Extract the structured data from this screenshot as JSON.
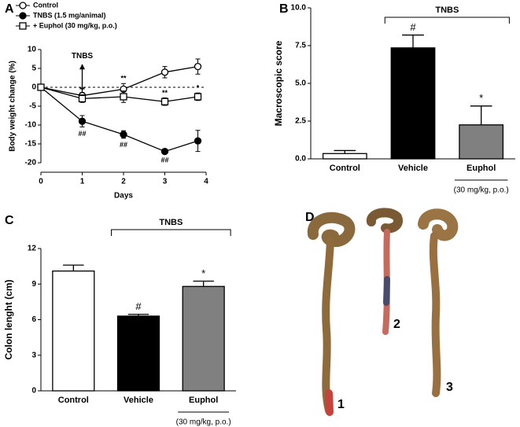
{
  "chart_data": [
    {
      "type": "line",
      "panel": "A",
      "xlabel": "Days",
      "ylabel": "Body weight change (%)",
      "x": [
        0,
        1,
        2,
        3,
        3.8
      ],
      "xlim": [
        0,
        4
      ],
      "xticks": [
        0,
        1,
        2,
        3,
        4
      ],
      "ylim": [
        -20,
        10
      ],
      "yticks": [
        -20,
        -15,
        -10,
        -5,
        0,
        5,
        10
      ],
      "hline": 0,
      "arrow_label": "TNBS",
      "arrow_x": 1,
      "series": [
        {
          "name": "Control",
          "color": "#000000",
          "marker": "circle-open",
          "values": [
            0,
            -2.2,
            -0.5,
            4,
            5.5
          ],
          "errors": [
            0,
            0.8,
            1.5,
            1.5,
            2
          ],
          "significance": [
            null,
            null,
            "**",
            null,
            null
          ]
        },
        {
          "name": "TNBS (1.5 mg/animal)",
          "color": "#000000",
          "marker": "circle-filled",
          "values": [
            0,
            -9,
            -12.5,
            -17,
            -14.2
          ],
          "errors": [
            0,
            1.5,
            1,
            0.5,
            2.8
          ],
          "significance": [
            null,
            "##",
            "##",
            "##",
            null
          ]
        },
        {
          "name": "+ Euphol (30 mg/kg, p.o.)",
          "color": "#000000",
          "marker": "square-open",
          "values": [
            0,
            -3,
            -2.5,
            -3.8,
            -2.5
          ],
          "errors": [
            0,
            1,
            1.5,
            1,
            1
          ],
          "significance": [
            null,
            "**",
            null,
            "**",
            "*"
          ]
        }
      ]
    },
    {
      "type": "bar",
      "panel": "B",
      "ylabel": "Macroscopic score",
      "categories": [
        "Control",
        "Vehicle",
        "Euphol"
      ],
      "values": [
        0.35,
        7.35,
        2.25
      ],
      "errors": [
        0.2,
        0.85,
        1.25
      ],
      "colors": [
        "#ffffff",
        "#000000",
        "#808080"
      ],
      "significance": [
        null,
        "#",
        "*"
      ],
      "category_notes": [
        null,
        null,
        "(30 mg/kg, p.o.)"
      ],
      "bracket_label": "TNBS",
      "bracket_categories": [
        "Vehicle",
        "Euphol"
      ],
      "ylim": [
        0,
        10
      ],
      "yticks": [
        {
          "value": 0,
          "label": "0.0"
        },
        {
          "value": 2.5,
          "label": "2.5"
        },
        {
          "value": 5,
          "label": "5.0"
        },
        {
          "value": 7.5,
          "label": "7.5"
        },
        {
          "value": 10,
          "label": "10.0"
        }
      ]
    },
    {
      "type": "bar",
      "panel": "C",
      "ylabel": "Colon lenght (cm)",
      "categories": [
        "Control",
        "Vehicle",
        "Euphol"
      ],
      "values": [
        10.1,
        6.3,
        8.8
      ],
      "errors": [
        0.5,
        0.15,
        0.45
      ],
      "colors": [
        "#ffffff",
        "#000000",
        "#808080"
      ],
      "significance": [
        null,
        "#",
        "*"
      ],
      "category_notes": [
        null,
        null,
        "(30 mg/kg, p.o.)"
      ],
      "bracket_label": "TNBS",
      "bracket_categories": [
        "Vehicle",
        "Euphol"
      ],
      "ylim": [
        0,
        12
      ],
      "yticks": [
        0,
        3,
        6,
        9,
        12
      ]
    }
  ],
  "photo_panel": {
    "panel": "D",
    "labels": [
      "1",
      "2",
      "3"
    ]
  }
}
